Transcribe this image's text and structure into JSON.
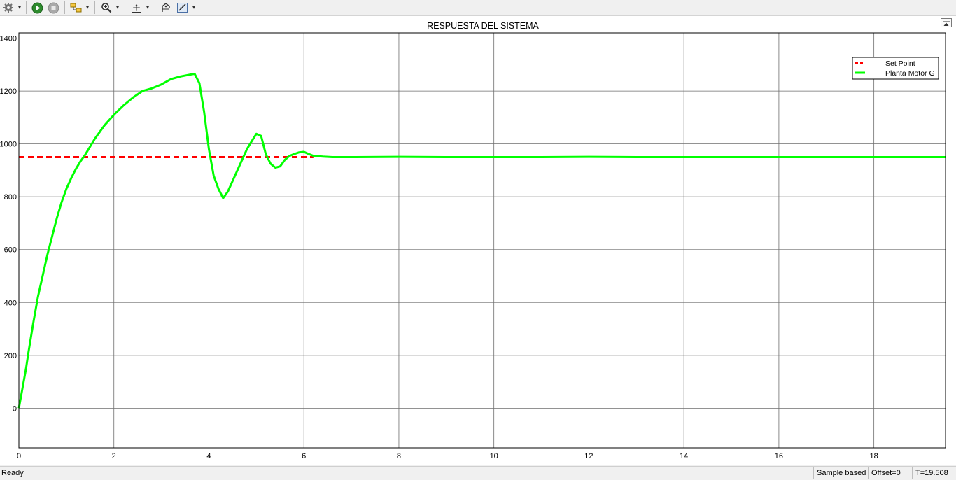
{
  "toolbar": {
    "icons": [
      "gear-icon",
      "run-icon",
      "stop-icon",
      "highlight-icon",
      "zoom-icon",
      "fit-icon",
      "cursor-icon",
      "measure-icon"
    ],
    "dropdown_glyph": "▾"
  },
  "status": {
    "ready": "Ready",
    "mode": "Sample based",
    "offset": "Offset=0",
    "time": "T=19.508"
  },
  "chart_data": {
    "type": "line",
    "title": "RESPUESTA DEL SISTEMA",
    "xlabel": "",
    "ylabel": "",
    "xlim": [
      0,
      19.508
    ],
    "ylim": [
      -150,
      1420
    ],
    "xticks": [
      0,
      2,
      4,
      6,
      8,
      10,
      12,
      14,
      16,
      18
    ],
    "yticks": [
      0,
      200,
      400,
      600,
      800,
      1000,
      1200,
      1400
    ],
    "grid": true,
    "background": "#ffffff",
    "legend_position": "top-right",
    "series": [
      {
        "name": "Set Point",
        "color": "#ff0000",
        "style": "dashed",
        "x": [
          0,
          6.2
        ],
        "y": [
          950,
          950
        ]
      },
      {
        "name": "Planta Motor G",
        "color": "#00ff00",
        "style": "solid",
        "x": [
          0,
          0.05,
          0.1,
          0.15,
          0.2,
          0.3,
          0.4,
          0.5,
          0.6,
          0.7,
          0.8,
          0.9,
          1.0,
          1.1,
          1.2,
          1.3,
          1.4,
          1.5,
          1.6,
          1.8,
          2.0,
          2.2,
          2.4,
          2.6,
          2.8,
          3.0,
          3.2,
          3.4,
          3.6,
          3.7,
          3.8,
          3.9,
          4.0,
          4.1,
          4.2,
          4.3,
          4.4,
          4.5,
          4.6,
          4.7,
          4.8,
          4.9,
          5.0,
          5.1,
          5.2,
          5.3,
          5.4,
          5.5,
          5.6,
          5.7,
          5.8,
          5.9,
          6.0,
          6.1,
          6.2,
          6.4,
          6.6,
          7.0,
          8.0,
          9.0,
          10.0,
          11.0,
          12.0,
          13.0,
          14.0,
          15.0,
          16.0,
          17.0,
          18.0,
          19.0,
          19.508
        ],
        "y": [
          0,
          50,
          100,
          150,
          210,
          320,
          420,
          500,
          580,
          650,
          720,
          780,
          830,
          870,
          905,
          935,
          960,
          990,
          1020,
          1070,
          1110,
          1145,
          1175,
          1200,
          1210,
          1225,
          1245,
          1255,
          1262,
          1265,
          1230,
          1120,
          980,
          880,
          830,
          795,
          820,
          860,
          900,
          940,
          980,
          1010,
          1038,
          1030,
          960,
          925,
          910,
          915,
          940,
          955,
          962,
          968,
          970,
          962,
          955,
          952,
          950,
          950,
          951,
          950,
          950,
          950,
          951,
          950,
          950,
          950,
          950,
          950,
          950,
          950,
          950
        ]
      }
    ]
  }
}
